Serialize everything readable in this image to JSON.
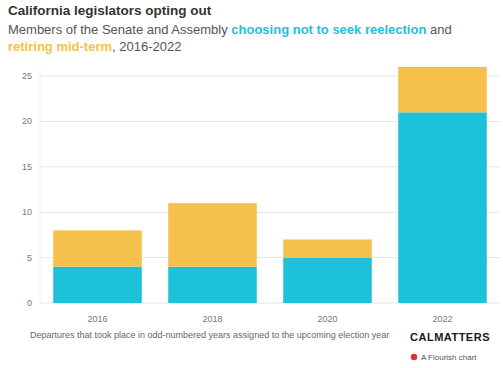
{
  "chart_data": {
    "type": "bar",
    "stacked": true,
    "grid": true,
    "title": "California legislators opting out",
    "subtitle": "Members of the Senate and Assembly choosing not to seek reelection and retiring mid-term, 2016-2022",
    "categories": [
      "2016",
      "2018",
      "2020",
      "2022"
    ],
    "series": [
      {
        "name": "choosing not to seek reelection",
        "color": "#1ec1da",
        "values": [
          4,
          4,
          5,
          21
        ]
      },
      {
        "name": "retiring mid-term",
        "color": "#f5c14b",
        "values": [
          4,
          7,
          2,
          5
        ]
      }
    ],
    "ylim": [
      0,
      26
    ],
    "yticks": [
      0,
      5,
      10,
      15,
      20,
      25
    ],
    "note": "Departures that took place in odd-numbered years assigned to the upcoming election year",
    "source": "CALMATTERS",
    "credit": "A Flourish chart"
  }
}
